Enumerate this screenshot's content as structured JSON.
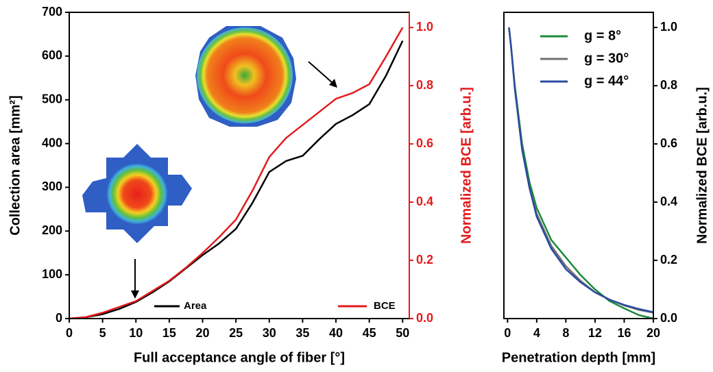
{
  "chart_data": [
    {
      "type": "line",
      "xlabel": "Full acceptance angle of fiber [°]",
      "ylabel": "Collection area [mm²]",
      "y2label": "Normalized BCE [arb.u.]",
      "y2_color": "#e31a1c",
      "x": [
        0,
        2.5,
        5,
        7.5,
        10,
        12.5,
        15,
        17.5,
        20,
        22.5,
        25,
        27.5,
        30,
        32.5,
        35,
        37.5,
        40,
        42.5,
        45,
        47.5,
        50
      ],
      "series": [
        {
          "name": "Area",
          "color": "#000000",
          "values": [
            0,
            3,
            10,
            22,
            38,
            60,
            85,
            115,
            145,
            172,
            205,
            265,
            335,
            360,
            372,
            410,
            445,
            465,
            490,
            555,
            635
          ]
        },
        {
          "name": "BCE",
          "color": "#e31a1c",
          "axis": "y2",
          "values": [
            0,
            0.005,
            0.02,
            0.04,
            0.06,
            0.095,
            0.13,
            0.175,
            0.225,
            0.28,
            0.34,
            0.44,
            0.555,
            0.62,
            0.665,
            0.71,
            0.755,
            0.775,
            0.805,
            0.9,
            1.0
          ]
        }
      ],
      "xlim": [
        0,
        51
      ],
      "xticks": [
        0,
        5,
        10,
        15,
        20,
        25,
        30,
        35,
        40,
        45,
        50
      ],
      "ylim": [
        0,
        700
      ],
      "yticks": [
        0,
        100,
        200,
        300,
        400,
        500,
        600,
        700
      ],
      "y2lim": [
        0,
        1.052
      ],
      "y2ticks": [
        {
          "value": 0,
          "label": "0.0"
        },
        0.2,
        0.4,
        0.6,
        0.8,
        {
          "value": 1,
          "label": "1.0"
        }
      ]
    },
    {
      "type": "line",
      "xlabel": "Penetration depth [mm]",
      "ylabel": "Normalized BCE [arb.u.]",
      "y_axis_side": "right",
      "x": [
        0.2,
        0.5,
        1,
        2,
        3,
        4,
        6,
        8,
        10,
        12,
        14,
        16,
        18,
        20
      ],
      "series": [
        {
          "name": "g = 8°",
          "color": "#1a8a3a",
          "values": [
            1.0,
            0.93,
            0.8,
            0.6,
            0.47,
            0.38,
            0.27,
            0.21,
            0.15,
            0.1,
            0.06,
            0.035,
            0.012,
            0.0
          ]
        },
        {
          "name": "g = 30°",
          "color": "#707070",
          "values": [
            1.0,
            0.93,
            0.79,
            0.58,
            0.45,
            0.36,
            0.25,
            0.18,
            0.13,
            0.09,
            0.065,
            0.045,
            0.03,
            0.02
          ]
        },
        {
          "name": "g = 44°",
          "color": "#2b4aa0",
          "values": [
            1.0,
            0.93,
            0.79,
            0.58,
            0.45,
            0.35,
            0.24,
            0.17,
            0.125,
            0.09,
            0.065,
            0.047,
            0.033,
            0.022
          ]
        }
      ],
      "xlim": [
        -0.5,
        20
      ],
      "xticks": [
        0,
        4,
        8,
        12,
        16,
        20
      ],
      "ylim": [
        0,
        1.052
      ],
      "yticks": [
        {
          "value": 0,
          "label": "0.0"
        },
        0.2,
        0.4,
        0.6,
        0.8,
        {
          "value": 1,
          "label": "1.0"
        }
      ]
    }
  ]
}
